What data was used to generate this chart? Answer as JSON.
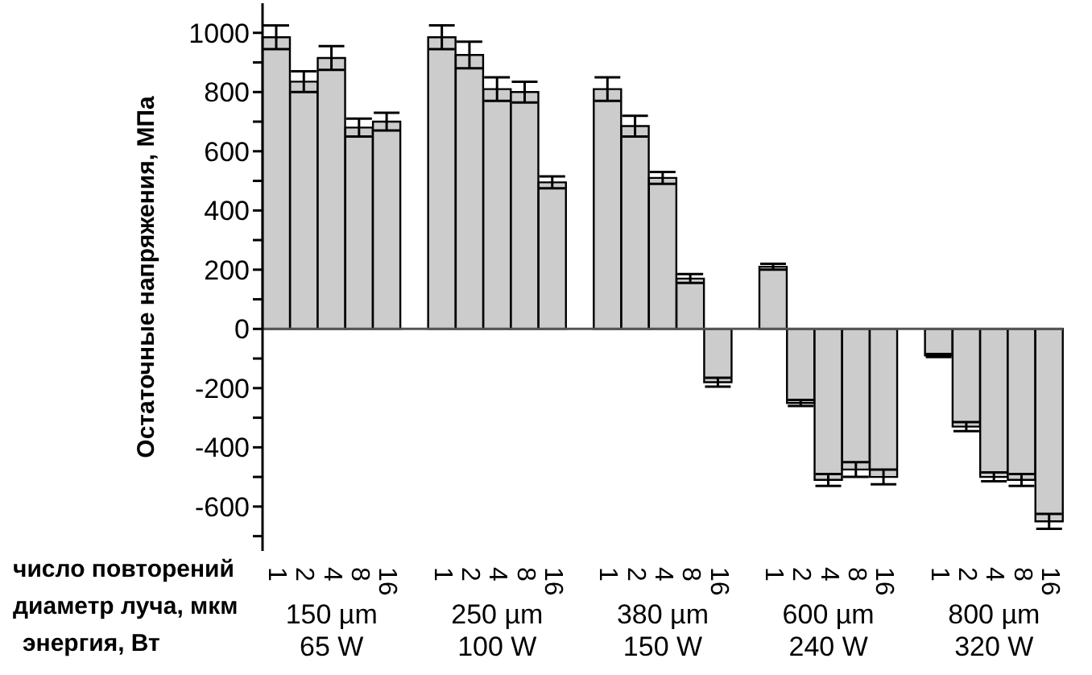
{
  "chart_data": {
    "type": "bar",
    "ylabel": "Остаточные напряжения, МПа",
    "categories": [
      "1",
      "2",
      "4",
      "8",
      "16",
      null,
      "1",
      "2",
      "4",
      "8",
      "16",
      null,
      "1",
      "2",
      "4",
      "8",
      "16",
      null,
      "1",
      "2",
      "4",
      "8",
      "16",
      null,
      "1",
      "2",
      "4",
      "8",
      "16"
    ],
    "values": [
      985,
      835,
      915,
      680,
      700,
      null,
      985,
      925,
      810,
      800,
      495,
      null,
      810,
      685,
      510,
      170,
      -180,
      null,
      210,
      -250,
      -510,
      -475,
      -500,
      null,
      -90,
      -330,
      -500,
      -510,
      -650
    ],
    "errors": [
      40,
      35,
      40,
      30,
      30,
      null,
      40,
      45,
      40,
      35,
      20,
      null,
      40,
      35,
      20,
      15,
      15,
      null,
      10,
      10,
      20,
      25,
      25,
      null,
      5,
      15,
      15,
      20,
      25
    ],
    "color": "#cccccc",
    "ylim": [
      -750,
      1100
    ],
    "yticks": [
      {
        "value": -700,
        "label": null
      },
      -600,
      {
        "value": -500,
        "label": null
      },
      -400,
      {
        "value": -300,
        "label": null
      },
      -200,
      {
        "value": -100,
        "label": null
      },
      0,
      {
        "value": 100,
        "label": null
      },
      200,
      {
        "value": 300,
        "label": null
      },
      400,
      {
        "value": 500,
        "label": null
      },
      600,
      {
        "value": 700,
        "label": null
      },
      800,
      {
        "value": 900,
        "label": null
      },
      1000
    ],
    "ref_lines": [
      {
        "axis": "y",
        "value": 0
      }
    ],
    "annotations": [
      "число повторений",
      "диаметр луча, мкм",
      "энергия, Вт",
      "150 µm",
      "65 W",
      "250 µm",
      "100 W",
      "380 µm",
      "150 W",
      "600 µm",
      "240 W",
      "800 µm",
      "320 W"
    ],
    "grid": false,
    "legend": false
  }
}
